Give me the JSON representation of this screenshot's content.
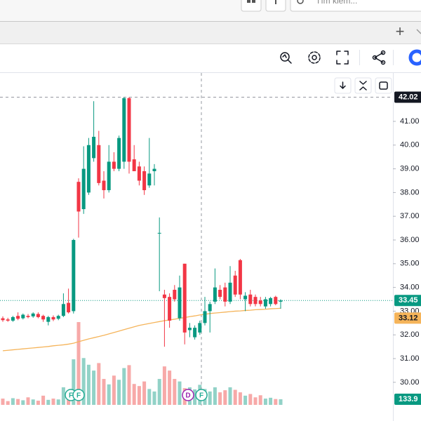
{
  "browser": {
    "search_placeholder": "Tìm kiếm...",
    "new_tab": "+"
  },
  "chart_data": {
    "type": "candlestick",
    "open": [
      32.7,
      32.65,
      32.6,
      32.8,
      32.7,
      32.8,
      32.78,
      32.88,
      32.8,
      32.55,
      32.75,
      32.68,
      32.8,
      33.35,
      33.0,
      38.45,
      37.3,
      38.0,
      39.45,
      40.0,
      38.5,
      38.1,
      39.3,
      39.0,
      39.3,
      41.98,
      39.4,
      39.1,
      38.9,
      38.3,
      38.9,
      36.27,
      33.7,
      33.6,
      33.9,
      32.7,
      35.0,
      32.2,
      31.9,
      32.1,
      32.5,
      33.0,
      33.4,
      33.9,
      34.0,
      33.4,
      34.5,
      35.15,
      33.5,
      33.7,
      33.6,
      33.45,
      33.2,
      33.3,
      33.6,
      33.4
    ],
    "high": [
      32.78,
      32.72,
      32.8,
      32.95,
      32.9,
      32.88,
      32.95,
      32.95,
      32.85,
      32.8,
      32.82,
      32.85,
      33.75,
      33.95,
      36.05,
      38.6,
      39.95,
      40.3,
      41.85,
      40.6,
      38.9,
      40.0,
      39.7,
      40.4,
      42.02,
      42.02,
      40.0,
      39.3,
      39.1,
      40.3,
      39.2,
      36.95,
      33.9,
      33.75,
      34.1,
      34.5,
      35.0,
      32.5,
      32.4,
      32.6,
      33.6,
      33.4,
      34.8,
      34.1,
      34.2,
      34.9,
      34.7,
      35.2,
      33.8,
      33.9,
      33.7,
      33.6,
      33.6,
      33.6,
      33.65,
      33.5
    ],
    "low": [
      32.55,
      32.55,
      32.55,
      32.62,
      32.65,
      32.7,
      32.72,
      32.7,
      32.55,
      32.4,
      32.58,
      32.62,
      32.75,
      32.9,
      32.9,
      36.1,
      37.1,
      37.9,
      39.3,
      38.3,
      37.75,
      38.0,
      38.9,
      38.9,
      39.0,
      38.8,
      38.9,
      38.3,
      37.9,
      38.2,
      38.3,
      33.84,
      31.5,
      32.3,
      33.4,
      32.6,
      31.6,
      31.9,
      31.8,
      32.0,
      32.4,
      32.1,
      33.3,
      33.5,
      33.2,
      33.3,
      33.6,
      33.5,
      33.0,
      33.2,
      33.2,
      33.2,
      33.1,
      33.2,
      33.25,
      33.1
    ],
    "close": [
      32.62,
      32.6,
      32.75,
      32.68,
      32.85,
      32.75,
      32.9,
      32.75,
      32.65,
      32.75,
      32.65,
      32.8,
      33.3,
      32.95,
      36.0,
      37.2,
      39.0,
      40.0,
      40.35,
      38.4,
      38.1,
      39.3,
      39.0,
      40.3,
      41.98,
      39.3,
      38.9,
      38.5,
      38.1,
      38.8,
      39.0,
      36.3,
      33.55,
      32.6,
      33.5,
      34.0,
      32.1,
      32.3,
      32.3,
      32.5,
      33.0,
      33.3,
      34.0,
      33.6,
      33.4,
      34.2,
      33.7,
      33.7,
      33.65,
      33.3,
      33.3,
      33.3,
      33.5,
      33.55,
      33.3,
      33.45
    ],
    "ma": [
      31.33,
      31.35,
      31.37,
      31.39,
      31.41,
      31.43,
      31.45,
      31.47,
      31.49,
      31.51,
      31.54,
      31.56,
      31.58,
      31.61,
      31.65,
      31.71,
      31.77,
      31.83,
      31.88,
      31.93,
      31.98,
      32.04,
      32.1,
      32.16,
      32.22,
      32.28,
      32.34,
      32.4,
      32.44,
      32.48,
      32.52,
      32.56,
      32.6,
      32.63,
      32.66,
      32.7,
      32.73,
      32.77,
      32.8,
      32.84,
      32.87,
      32.9,
      32.92,
      32.94,
      32.96,
      32.98,
      33.0,
      33.01,
      33.03,
      33.04,
      33.06,
      33.07,
      33.08,
      33.1,
      33.11,
      33.12
    ],
    "volume": [
      150,
      90,
      160,
      140,
      110,
      180,
      130,
      100,
      220,
      120,
      150,
      130,
      420,
      330,
      1090,
      1980,
      1120,
      960,
      820,
      1000,
      620,
      490,
      700,
      600,
      880,
      950,
      500,
      450,
      560,
      380,
      320,
      620,
      920,
      820,
      620,
      560,
      400,
      420,
      370,
      480,
      380,
      320,
      420,
      300,
      350,
      420,
      360,
      300,
      220,
      260,
      180,
      230,
      150,
      170,
      140,
      133.9
    ],
    "up_color": "#089981",
    "down_color": "#f23645",
    "up_volume_color": "#92d2c7",
    "down_volume_color": "#f7a9a8",
    "ma_color": "#f5b45a",
    "ylim": [
      29.02,
      43.04
    ],
    "volume_lim": [
      0,
      2400
    ],
    "yticks": [
      {
        "value": 30,
        "label": "30.00"
      },
      {
        "value": 31,
        "label": "31.00"
      },
      {
        "value": 32,
        "label": "32.00"
      },
      {
        "value": 33,
        "label": "33.00"
      },
      {
        "value": 34,
        "label": "34.00"
      },
      {
        "value": 35,
        "label": "35.00"
      },
      {
        "value": 36,
        "label": "36.00"
      },
      {
        "value": 37,
        "label": "37.00"
      },
      {
        "value": 38,
        "label": "38.00"
      },
      {
        "value": 39,
        "label": "39.00"
      },
      {
        "value": 40,
        "label": "40.00"
      },
      {
        "value": 41,
        "label": "41.00"
      }
    ],
    "events": [
      "F",
      "F",
      "D",
      "F"
    ]
  }
}
